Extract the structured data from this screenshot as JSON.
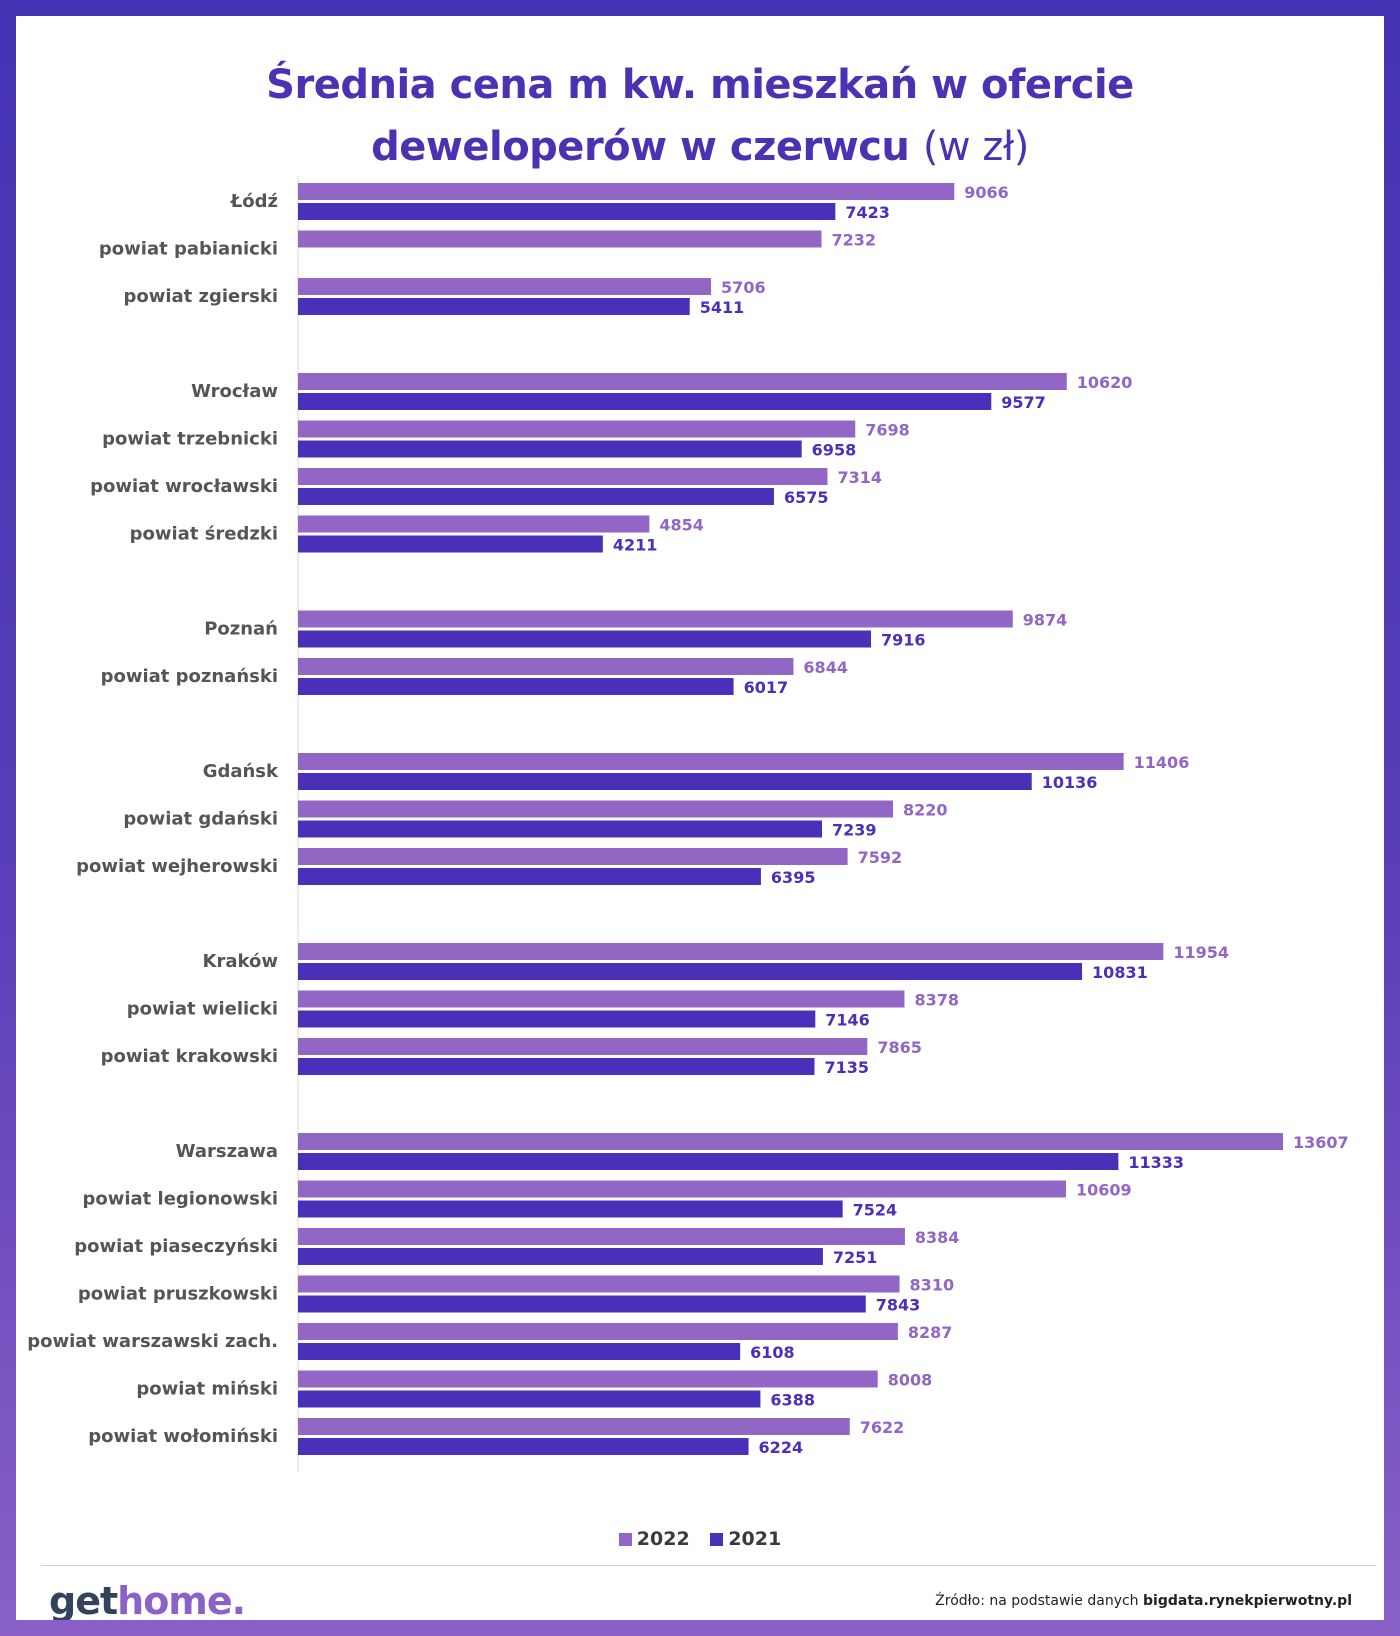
{
  "title": {
    "line1": "Średnia cena m kw. mieszkań w ofercie",
    "line2": "deweloperów w czerwcu",
    "unit": "(w zł)"
  },
  "colors": {
    "s2022": "#9166c4",
    "s2021": "#4a2fb8",
    "label": "#555555",
    "axis": "#d6d6d6"
  },
  "legend": {
    "s2022": "2022",
    "s2021": "2021"
  },
  "footer": {
    "logo_main": "get",
    "logo_accent": "home",
    "logo_dot": ".",
    "source_prefix": "Źródło: na podstawie danych",
    "source_bold": "bigdata.rynekpierwotny.pl"
  },
  "chart_data": {
    "type": "bar",
    "orientation": "horizontal",
    "title": "Średnia cena m kw. mieszkań w ofercie deweloperów w czerwcu (w zł)",
    "xlim": [
      0,
      14000
    ],
    "grid": false,
    "legend_position": "bottom",
    "groups": [
      {
        "items": [
          {
            "label": "Łódź",
            "v2022": 9066,
            "v2021": 7423
          },
          {
            "label": "powiat pabianicki",
            "v2022": 7232,
            "v2021": null
          },
          {
            "label": "powiat zgierski",
            "v2022": 5706,
            "v2021": 5411
          }
        ]
      },
      {
        "items": [
          {
            "label": "Wrocław",
            "v2022": 10620,
            "v2021": 9577
          },
          {
            "label": "powiat trzebnicki",
            "v2022": 7698,
            "v2021": 6958
          },
          {
            "label": "powiat wrocławski",
            "v2022": 7314,
            "v2021": 6575
          },
          {
            "label": "powiat średzki",
            "v2022": 4854,
            "v2021": 4211
          }
        ]
      },
      {
        "items": [
          {
            "label": "Poznań",
            "v2022": 9874,
            "v2021": 7916
          },
          {
            "label": "powiat poznański",
            "v2022": 6844,
            "v2021": 6017
          }
        ]
      },
      {
        "items": [
          {
            "label": "Gdańsk",
            "v2022": 11406,
            "v2021": 10136
          },
          {
            "label": "powiat gdański",
            "v2022": 8220,
            "v2021": 7239
          },
          {
            "label": "powiat wejherowski",
            "v2022": 7592,
            "v2021": 6395
          }
        ]
      },
      {
        "items": [
          {
            "label": "Kraków",
            "v2022": 11954,
            "v2021": 10831
          },
          {
            "label": "powiat wielicki",
            "v2022": 8378,
            "v2021": 7146
          },
          {
            "label": "powiat krakowski",
            "v2022": 7865,
            "v2021": 7135
          }
        ]
      },
      {
        "items": [
          {
            "label": "Warszawa",
            "v2022": 13607,
            "v2021": 11333
          },
          {
            "label": "powiat legionowski",
            "v2022": 10609,
            "v2021": 7524
          },
          {
            "label": "powiat piaseczyński",
            "v2022": 8384,
            "v2021": 7251
          },
          {
            "label": "powiat pruszkowski",
            "v2022": 8310,
            "v2021": 7843
          },
          {
            "label": "powiat warszawski zach.",
            "v2022": 8287,
            "v2021": 6108
          },
          {
            "label": "powiat miński",
            "v2022": 8008,
            "v2021": 6388
          },
          {
            "label": "powiat wołomiński",
            "v2022": 7622,
            "v2021": 6224
          }
        ]
      }
    ]
  }
}
